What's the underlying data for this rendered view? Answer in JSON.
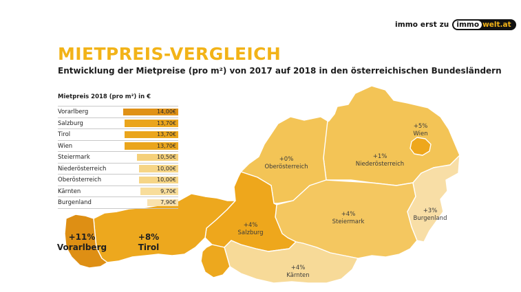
{
  "brand": {
    "prefix": "immo erst zu",
    "logo_immo": "immo",
    "logo_welt": "welt.at"
  },
  "title": "MIETPREIS-VERGLEICH",
  "subtitle": "Entwicklung der Mietpreise (pro m²) von 2017 auf 2018 in den österreichischen Bundesländern",
  "legend": {
    "title": "Mietpreis 2018 (pro m²) in €",
    "rows": [
      {
        "name": "Vorarlberg",
        "value": 14.0,
        "label": "14,00€",
        "color": "#e09116"
      },
      {
        "name": "Salzburg",
        "value": 13.7,
        "label": "13,70€",
        "color": "#eaa51c"
      },
      {
        "name": "Tirol",
        "value": 13.7,
        "label": "13,70€",
        "color": "#eaa51c"
      },
      {
        "name": "Wien",
        "value": 13.7,
        "label": "13,70€",
        "color": "#eaa51c"
      },
      {
        "name": "Steiermark",
        "value": 10.5,
        "label": "10,50€",
        "color": "#f5d07a"
      },
      {
        "name": "Niederösterreich",
        "value": 10.0,
        "label": "10,00€",
        "color": "#f6d586"
      },
      {
        "name": "Oberösterreich",
        "value": 10.0,
        "label": "10,00€",
        "color": "#f6d586"
      },
      {
        "name": "Kärnten",
        "value": 9.7,
        "label": "9,70€",
        "color": "#f8dd9b"
      },
      {
        "name": "Burgenland",
        "value": 7.9,
        "label": "7,90€",
        "color": "#f9e2ae"
      }
    ]
  },
  "regions": {
    "vorarlberg": {
      "name": "Vorarlberg",
      "change": "+11%",
      "color": "#de8f14"
    },
    "tirol": {
      "name": "Tirol",
      "change": "+8%",
      "color": "#eda81e"
    },
    "salzburg": {
      "name": "Salzburg",
      "change": "+4%",
      "color": "#eea71c"
    },
    "oberoesterreich": {
      "name": "Oberösterreich",
      "change": "+0%",
      "color": "#f3c456"
    },
    "niederoesterreich": {
      "name": "Niederösterreich",
      "change": "+1%",
      "color": "#f3c456"
    },
    "wien": {
      "name": "Wien",
      "change": "+5%",
      "color": "#eea71c"
    },
    "steiermark": {
      "name": "Steiermark",
      "change": "+4%",
      "color": "#f4c760"
    },
    "kaernten": {
      "name": "Kärnten",
      "change": "+4%",
      "color": "#f7da98"
    },
    "burgenland": {
      "name": "Burgenland",
      "change": "+3%",
      "color": "#f8dea6"
    }
  }
}
